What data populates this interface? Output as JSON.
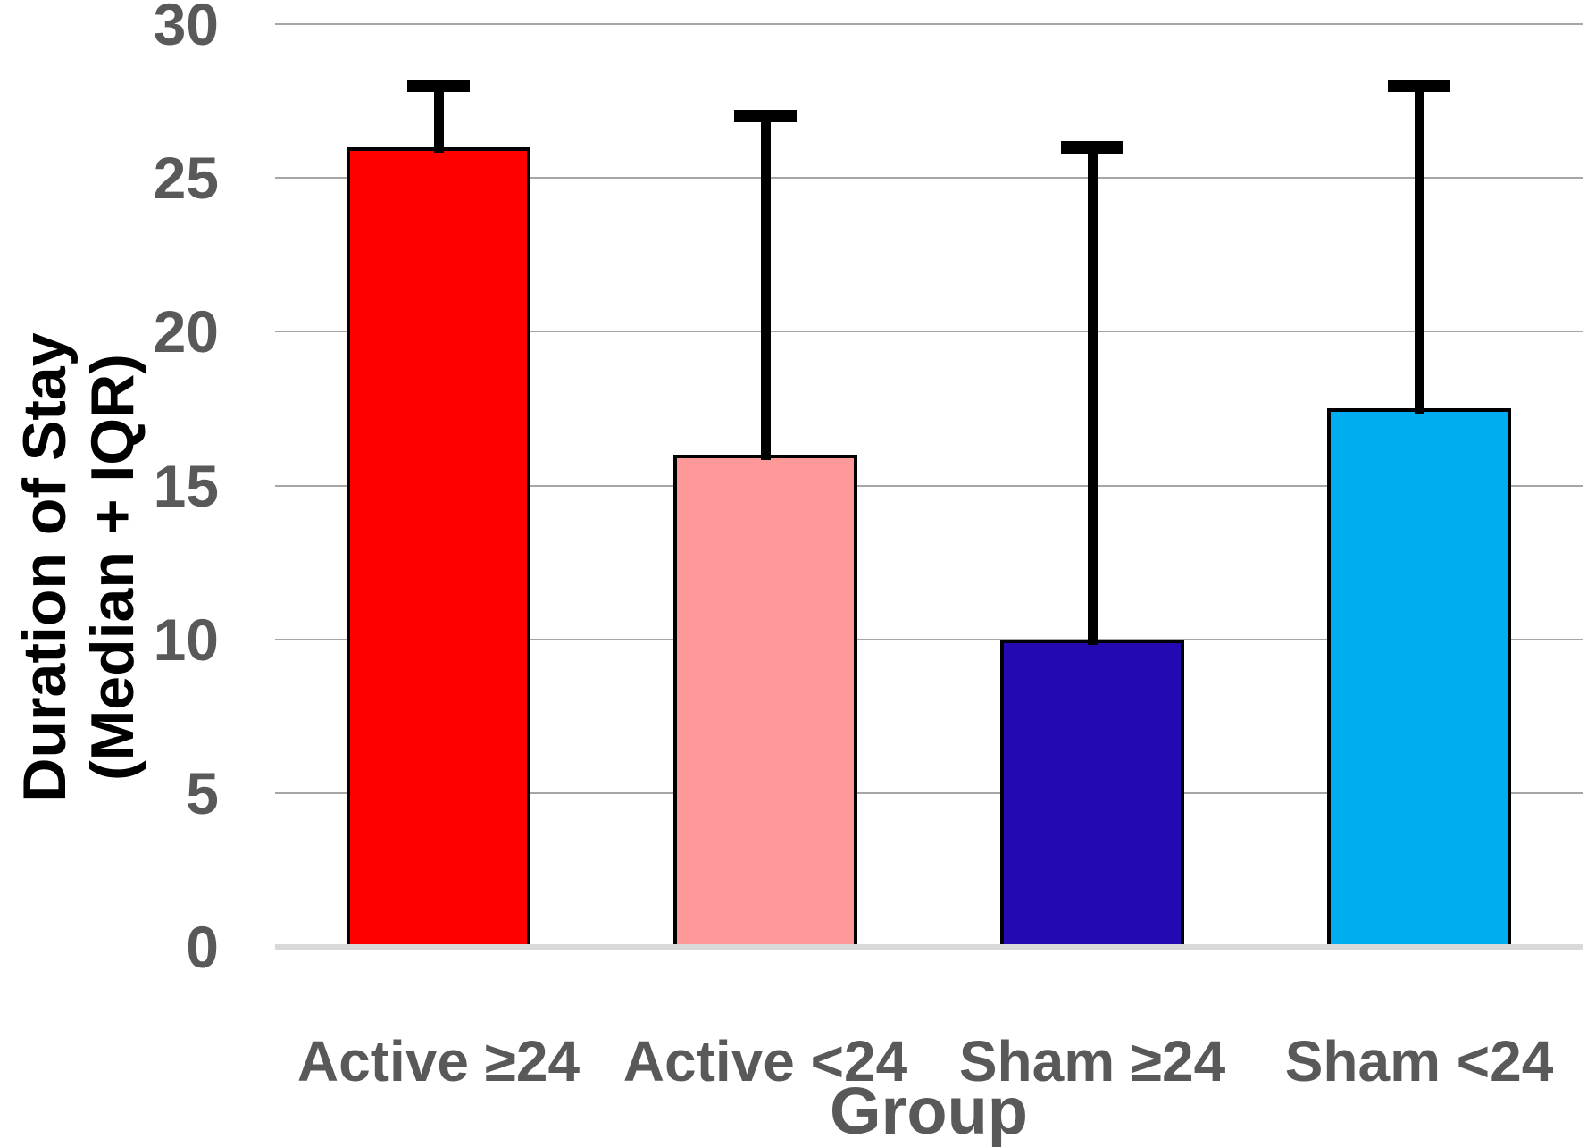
{
  "chart_data": {
    "type": "bar",
    "categories": [
      "Active ≥24",
      "Active <24",
      "Sham ≥24",
      "Sham <24"
    ],
    "values": [
      26,
      16,
      10,
      17.5
    ],
    "error_upper": [
      28,
      27,
      26,
      28
    ],
    "bar_colors": [
      "#FF0000",
      "#FF9999",
      "#2209B2",
      "#00AEEF"
    ],
    "xlabel": "Group",
    "ylabel": "Duration of Stay (Median + IQR)",
    "ylabel_lines": [
      "Duration of Stay",
      "(Median + IQR)"
    ],
    "ylim": [
      0,
      30
    ],
    "yticks": [
      0,
      5,
      10,
      15,
      20,
      25,
      30
    ],
    "grid": true,
    "legend": "none",
    "colors": {
      "gridline": "#A6A6A6",
      "axis_line": "#D9D9D9",
      "tick_label": "#595959",
      "category_label": "#595959",
      "x_title": "#595959",
      "y_title": "#000000",
      "bar_border": "#000000",
      "error_bar": "#000000",
      "background": "#FFFFFF"
    }
  }
}
